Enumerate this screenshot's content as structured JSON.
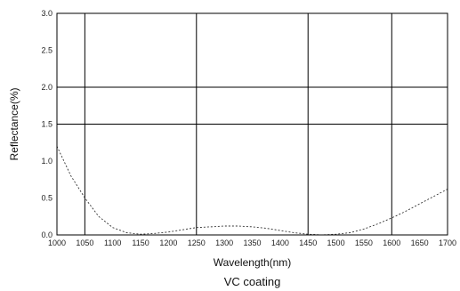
{
  "chart_data": {
    "type": "line",
    "title": "VC coating",
    "xlabel": "Wavelength(nm)",
    "ylabel": "Reflectance(%)",
    "xlim": [
      1000,
      1700
    ],
    "ylim": [
      0,
      3.0
    ],
    "x_ticks": [
      "1000",
      "1050",
      "1100",
      "1150",
      "1200",
      "1250",
      "1300",
      "1350",
      "1400",
      "1450",
      "1500",
      "1550",
      "1600",
      "1650",
      "1700"
    ],
    "y_ticks": [
      "0.0",
      "0.5",
      "1.0",
      "1.5",
      "2.0",
      "2.5",
      "3.0"
    ],
    "vertical_gridlines_at": [
      1050,
      1250,
      1450,
      1600
    ],
    "horizontal_gridlines_at": [
      1.5,
      2.0
    ],
    "grid": true,
    "line_style": "dashed",
    "series": [
      {
        "x": [
          1000,
          1025,
          1050,
          1075,
          1100,
          1125,
          1150,
          1175,
          1200,
          1225,
          1250,
          1275,
          1300,
          1325,
          1350,
          1375,
          1400,
          1425,
          1450,
          1475,
          1500,
          1525,
          1550,
          1575,
          1600,
          1625,
          1650,
          1675,
          1700
        ],
        "y": [
          1.2,
          0.8,
          0.5,
          0.25,
          0.1,
          0.03,
          0.01,
          0.02,
          0.04,
          0.07,
          0.1,
          0.11,
          0.12,
          0.12,
          0.11,
          0.09,
          0.06,
          0.03,
          0.01,
          0.0,
          0.01,
          0.03,
          0.08,
          0.15,
          0.23,
          0.32,
          0.42,
          0.52,
          0.62
        ]
      }
    ]
  }
}
